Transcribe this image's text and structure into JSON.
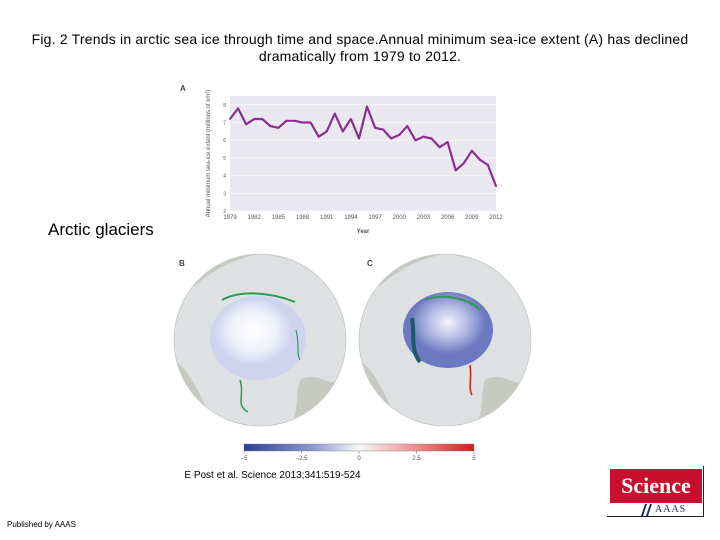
{
  "title": "Fig. 2 Trends in arctic sea ice through time and space.Annual minimum sea-ice extent (A) has declined dramatically from 1979 to 2012.",
  "side_label": "Arctic glaciers",
  "citation": "E Post et al. Science 2013;341:519-524",
  "published": "Published by AAAS",
  "logo": {
    "word": "Science",
    "org": "AAAS"
  },
  "colors": {
    "line": "#8e2d91",
    "plot_bg": "#e9e8ef",
    "ocean": "#dfe3e3",
    "land": "#c5c9bf",
    "green_edge": "#2d9a55"
  },
  "chart_data": [
    {
      "type": "line",
      "panel": "A",
      "xlabel": "Year",
      "ylabel": "Annual minimum sea-ice extent (millions of km²)",
      "x": [
        1979,
        1980,
        1981,
        1982,
        1983,
        1984,
        1985,
        1986,
        1987,
        1988,
        1989,
        1990,
        1991,
        1992,
        1993,
        1994,
        1995,
        1996,
        1997,
        1998,
        1999,
        2000,
        2001,
        2002,
        2003,
        2004,
        2005,
        2006,
        2007,
        2008,
        2009,
        2010,
        2011,
        2012
      ],
      "y": [
        7.2,
        7.8,
        6.9,
        7.2,
        7.2,
        6.8,
        6.7,
        7.1,
        7.1,
        7.0,
        7.0,
        6.2,
        6.5,
        7.5,
        6.5,
        7.2,
        6.1,
        7.9,
        6.7,
        6.6,
        6.1,
        6.3,
        6.8,
        6.0,
        6.2,
        6.1,
        5.6,
        5.9,
        4.3,
        4.7,
        5.4,
        4.9,
        4.6,
        3.4
      ],
      "xticks": [
        "1979",
        "1982",
        "1985",
        "1988",
        "1991",
        "1994",
        "1997",
        "2000",
        "2003",
        "2006",
        "2009",
        "2012"
      ],
      "yticks": [
        "2",
        "3",
        "4",
        "5",
        "6",
        "7",
        "8"
      ],
      "xlim": [
        1979,
        2012
      ],
      "ylim": [
        2,
        8.5
      ]
    },
    {
      "type": "heatmap",
      "panels": [
        "B",
        "C"
      ],
      "colorbar_ticks": [
        "−5",
        "−2.5",
        "0",
        "2.5",
        "5"
      ],
      "colorbar_range": [
        -5,
        5
      ]
    }
  ]
}
